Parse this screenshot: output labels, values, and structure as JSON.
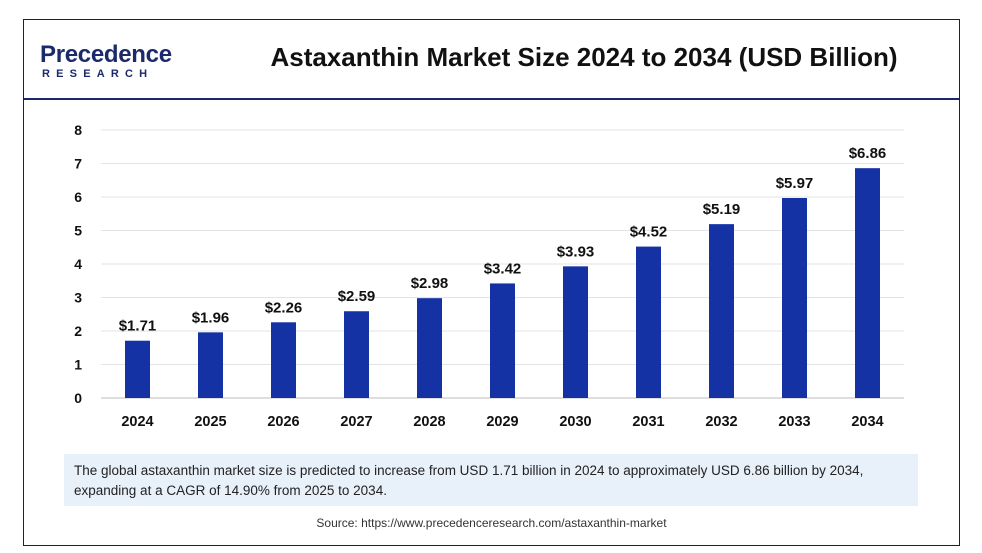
{
  "logo": {
    "main": "Precedence",
    "sub": "RESEARCH",
    "color": "#1a2a6b"
  },
  "title": "Astaxanthin Market Size 2024 to 2034 (USD Billion)",
  "chart_data": {
    "type": "bar",
    "categories": [
      "2024",
      "2025",
      "2026",
      "2027",
      "2028",
      "2029",
      "2030",
      "2031",
      "2032",
      "2033",
      "2034"
    ],
    "values": [
      1.71,
      1.96,
      2.26,
      2.59,
      2.98,
      3.42,
      3.93,
      4.52,
      5.19,
      5.97,
      6.86
    ],
    "data_labels": [
      "$1.71",
      "$1.96",
      "$2.26",
      "$2.59",
      "$2.98",
      "$3.42",
      "$3.93",
      "$4.52",
      "$5.19",
      "$5.97",
      "$6.86"
    ],
    "ylim": [
      0,
      8
    ],
    "yticks": [
      0,
      1,
      2,
      3,
      4,
      5,
      6,
      7,
      8
    ],
    "grid": true,
    "bar_color": "#1432a4",
    "xlabel": "",
    "ylabel": ""
  },
  "caption": "The global astaxanthin market size is predicted to increase from USD 1.71 billion in 2024 to approximately USD 6.86 billion by 2034, expanding at a CAGR of 14.90% from 2025 to 2034.",
  "source": "Source: https://www.precedenceresearch.com/astaxanthin-market"
}
